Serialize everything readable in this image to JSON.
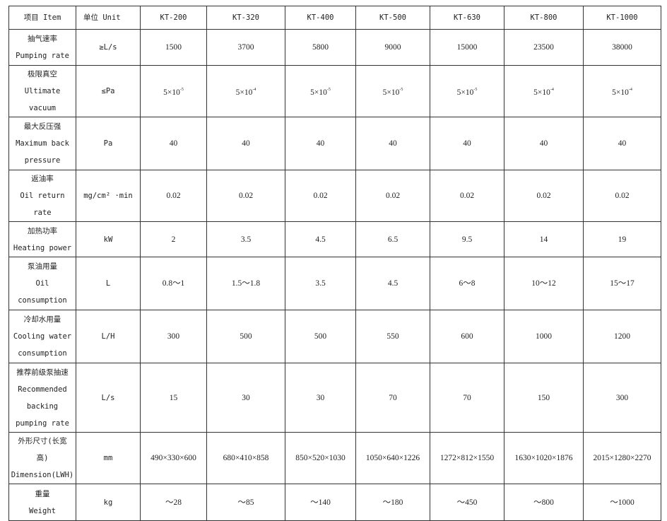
{
  "header": {
    "item": "项目 Item",
    "unit": "单位 Unit",
    "models": [
      "KT-200",
      "KT-320",
      "KT-400",
      "KT-500",
      "KT-630",
      "KT-800",
      "KT-1000"
    ]
  },
  "rows": [
    {
      "label": [
        "抽气速率",
        "Pumping rate"
      ],
      "unit": "≥L/s",
      "values": [
        "1500",
        "3700",
        "5800",
        "9000",
        "15000",
        "23500",
        "38000"
      ]
    },
    {
      "label": [
        "极限真空",
        "Ultimate",
        "vacuum"
      ],
      "unit": "≤Pa",
      "values": [
        "5×10",
        "5×10",
        "5×10",
        "5×10",
        "5×10",
        "5×10",
        "5×10"
      ],
      "exponents": [
        "-5",
        "-4",
        "-5",
        "-5",
        "-5",
        "-4",
        "-4"
      ]
    },
    {
      "label": [
        "最大反压强",
        "Maximum back",
        "pressure"
      ],
      "unit": "Pa",
      "values": [
        "40",
        "40",
        "40",
        "40",
        "40",
        "40",
        "40"
      ]
    },
    {
      "label": [
        "返油率",
        "Oil return rate"
      ],
      "unit": "mg/cm² ·min",
      "values": [
        "0.02",
        "0.02",
        "0.02",
        "0.02",
        "0.02",
        "0.02",
        "0.02"
      ]
    },
    {
      "label": [
        "加热功率",
        "Heating power"
      ],
      "unit": "kW",
      "values": [
        "2",
        "3.5",
        "4.5",
        "6.5",
        "9.5",
        "14",
        "19"
      ]
    },
    {
      "label": [
        "泵油用量",
        "Oil",
        "consumption"
      ],
      "unit": "L",
      "values": [
        "0.8～1",
        "1.5～1.8",
        "3.5",
        "4.5",
        "6～8",
        "10～12",
        "15～17"
      ]
    },
    {
      "label": [
        "冷却水用量",
        "Cooling water",
        "consumption"
      ],
      "unit": "L/H",
      "values": [
        "300",
        "500",
        "500",
        "550",
        "600",
        "1000",
        "1200"
      ]
    },
    {
      "label": [
        "推荐前级泵抽速",
        "Recommended",
        "backing",
        "pumping rate"
      ],
      "unit": "L/s",
      "values": [
        "15",
        "30",
        "30",
        "70",
        "70",
        "150",
        "300"
      ]
    },
    {
      "label": [
        "外形尺寸(长宽",
        "高)",
        "Dimension(LWH)"
      ],
      "unit": "mm",
      "values": [
        "490×330×600",
        "680×410×858",
        "850×520×1030",
        "1050×640×1226",
        "1272×812×1550",
        "1630×1020×1876",
        "2015×1280×2270"
      ]
    },
    {
      "label": [
        "重量",
        "Weight"
      ],
      "unit": "kg",
      "values": [
        "～28",
        "～85",
        "～140",
        "～180",
        "～450",
        "～800",
        "～1000"
      ]
    }
  ]
}
